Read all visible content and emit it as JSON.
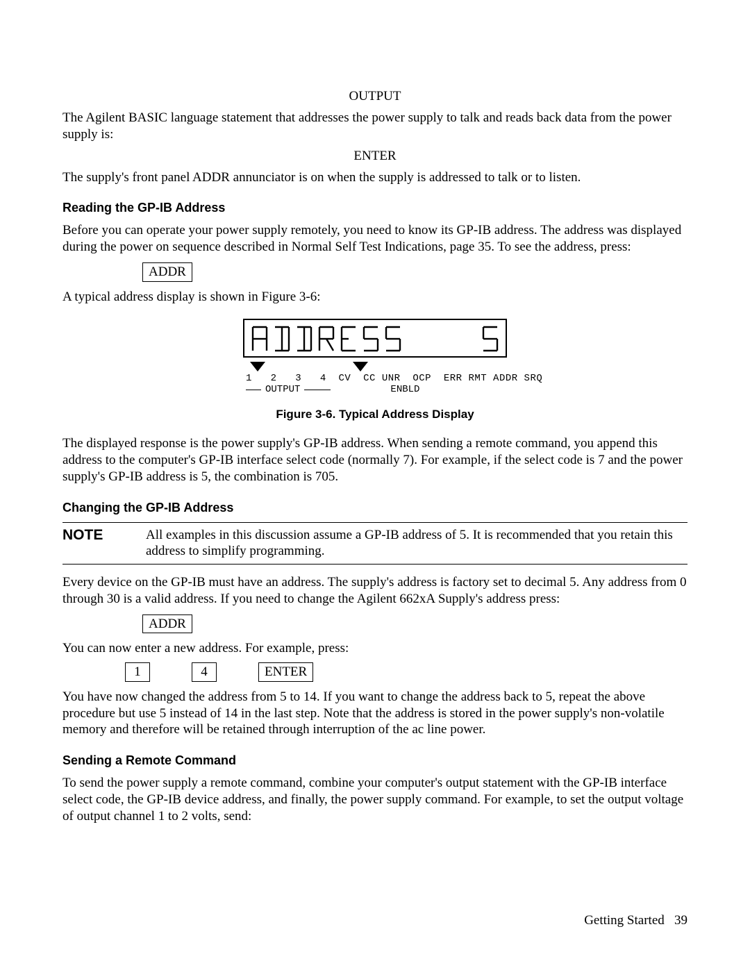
{
  "cmd_output": "OUTPUT",
  "para_output": "The Agilent BASIC language statement that addresses the power supply to talk and reads back data from the power supply is:",
  "cmd_enter": "ENTER",
  "para_enter": "The supply's front panel ADDR annunciator is on when the supply is addressed to talk or to listen.",
  "h_reading": "Reading the GP-IB Address",
  "para_reading": "Before you can operate your power supply remotely, you need to know its GP-IB address. The address was displayed during the power on sequence described in Normal Self Test Indications, page 35. To see the address, press:",
  "key_addr": "ADDR",
  "para_typical": "A typical address display is shown in Figure 3-6:",
  "lcd_word": "ADDRESS",
  "lcd_value": "5",
  "annunciators": "1   2   3   4  CV  CC UNR  OCP  ERR RMT ADDR SRQ",
  "output_label": "OUTPUT",
  "enbld_label": "ENBLD",
  "figure_caption": "Figure 3-6. Typical Address Display",
  "para_displayed": "The displayed response is the power supply's GP-IB address. When sending a remote command, you append this address to the computer's GP-IB interface select code (normally 7). For example, if the select code is 7 and the power supply's GP-IB address is 5, the combination is 705.",
  "h_changing": "Changing the GP-IB Address",
  "note_label": "NOTE",
  "note_text": "All examples in this discussion assume a GP-IB address of 5. It is recommended that you retain this address to simplify programming.",
  "para_every": "Every device on the GP-IB must have an address. The supply's address is factory set to decimal 5. Any address from 0 through 30 is a valid address. If you need to change the Agilent 662xA Supply's address press:",
  "para_now_enter": "You can now enter a new address. For example, press:",
  "key_1": "1",
  "key_4": "4",
  "key_enter": "ENTER",
  "para_changed": "You have now changed the address from 5 to 14. If you want to change the address back to 5, repeat the above procedure but use 5 instead of 14 in the last step. Note that the address is stored in the power supply's non-volatile memory and therefore will be retained through interruption of the ac line power.",
  "h_sending": "Sending a Remote Command",
  "para_sending": "To send the power supply a remote command, combine your computer's output statement with the GP-IB interface select code, the GP-IB device address, and finally, the power supply command. For example, to set the output voltage of output channel 1 to 2 volts, send:",
  "footer_text": "Getting Started",
  "footer_page": "39"
}
